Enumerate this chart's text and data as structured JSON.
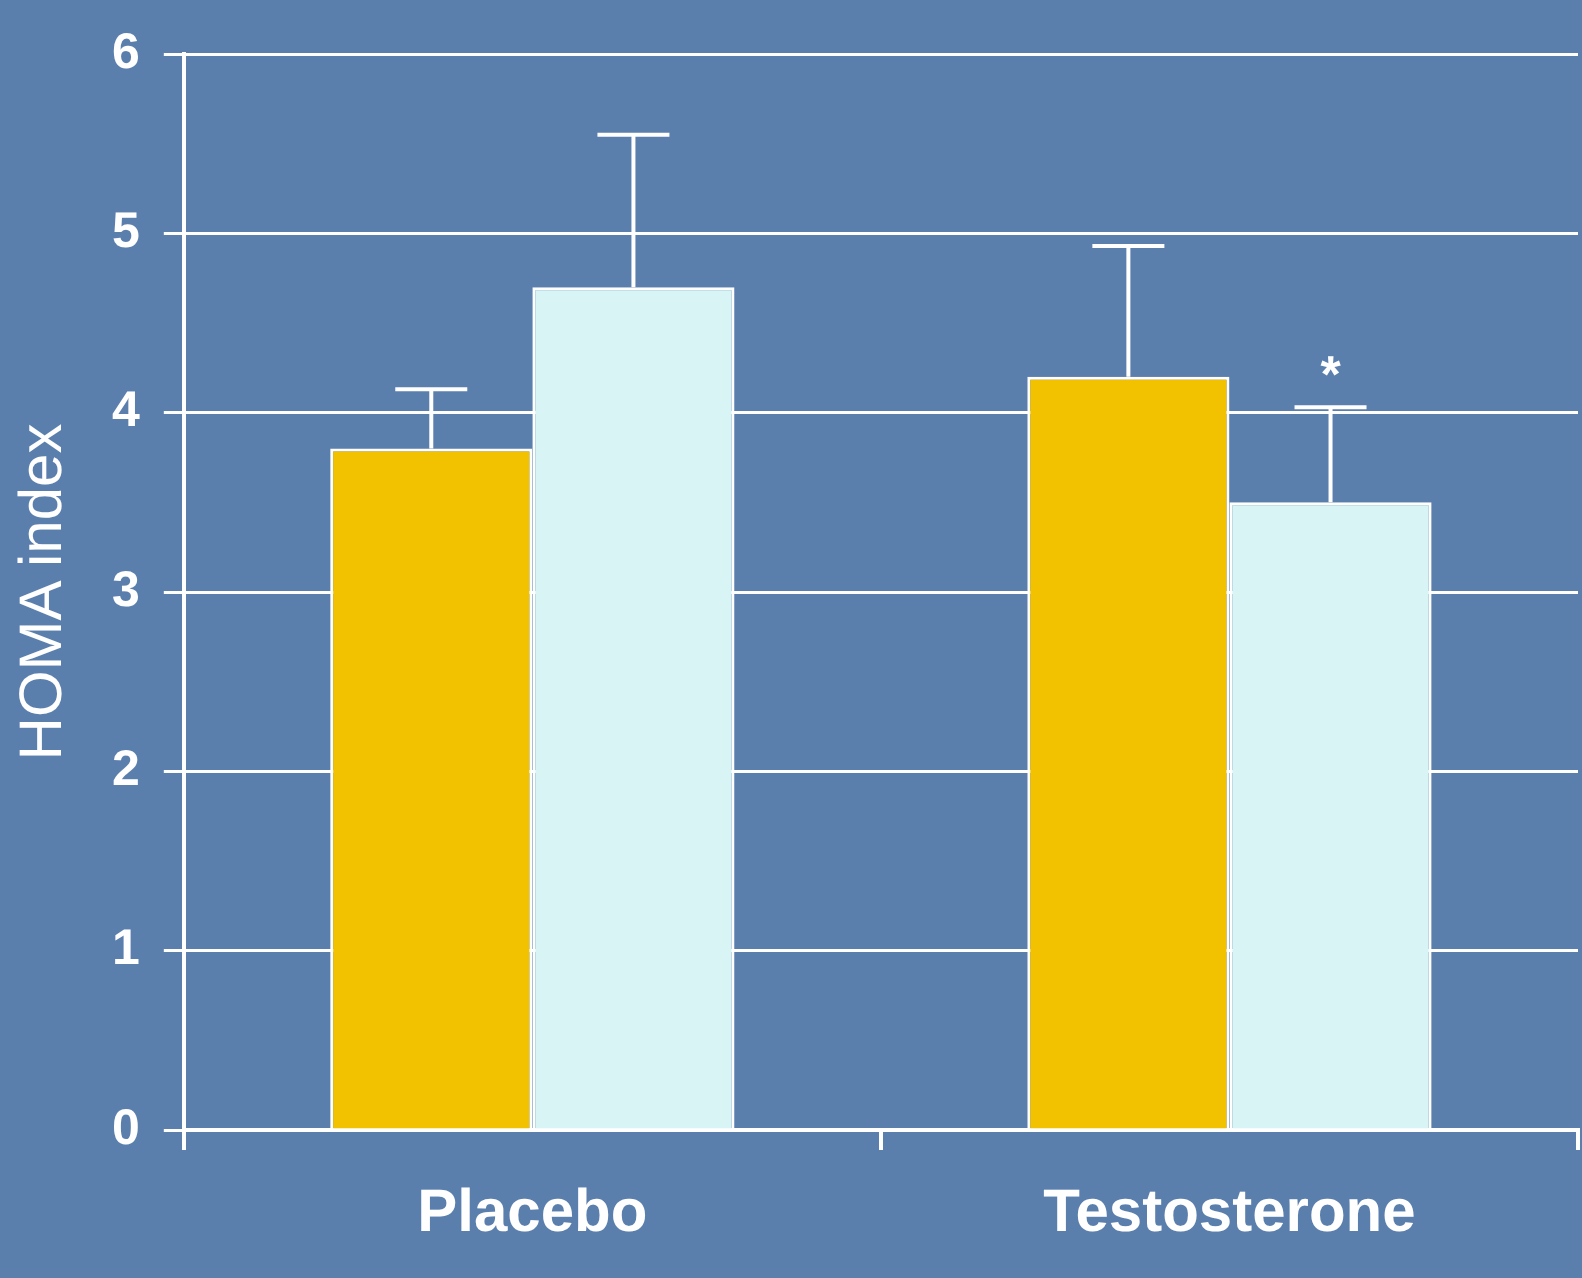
{
  "chart_data": {
    "type": "bar",
    "ylabel": "HOMA index",
    "categories": [
      "Placebo",
      "Testosterone"
    ],
    "series": [
      {
        "color": "#f2c200",
        "values": [
          3.8,
          4.2
        ],
        "errors": [
          [
            3.8,
            4.13
          ],
          [
            4.2,
            4.93
          ]
        ]
      },
      {
        "color": "#d8f4f4",
        "values": [
          4.7,
          3.5
        ],
        "errors": [
          [
            4.7,
            5.55
          ],
          [
            3.5,
            4.03
          ]
        ]
      }
    ],
    "ylim": [
      0,
      6
    ],
    "yticks": [
      0,
      1,
      2,
      3,
      4,
      5,
      6
    ],
    "grid": "y",
    "legend": false,
    "annotations": [
      {
        "text": "*",
        "x": "Testosterone",
        "y": 4.03
      }
    ]
  }
}
